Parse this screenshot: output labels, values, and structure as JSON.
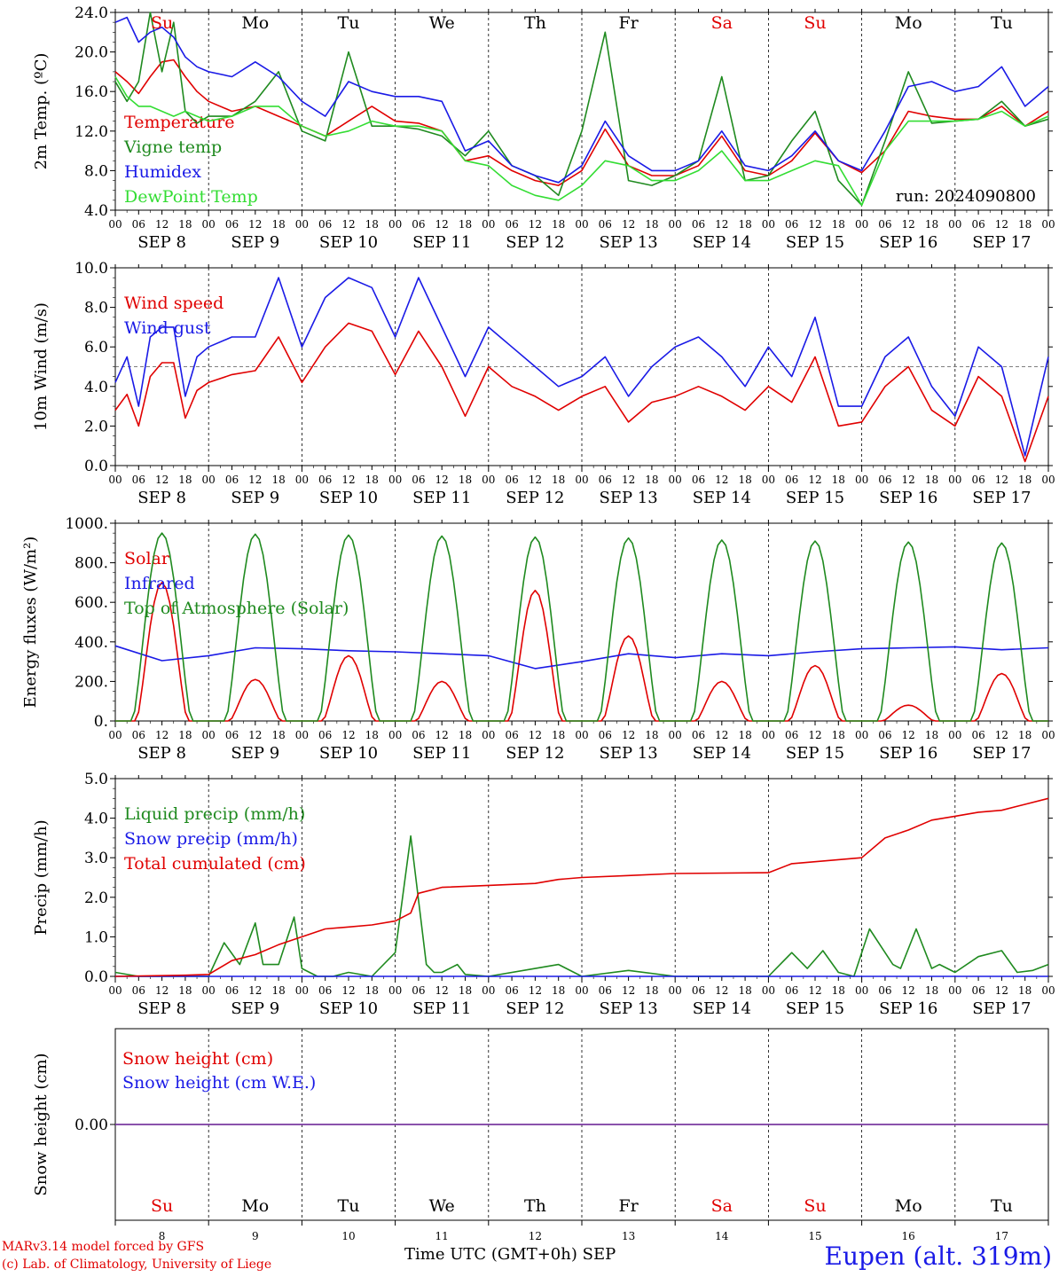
{
  "colors": {
    "red": "#e00000",
    "green": "#1f8a1f",
    "blue": "#1a1ae6",
    "lightgreen": "#33dd33",
    "purple": "#7a3aa0",
    "gray": "#666666"
  },
  "days": {
    "weekday": [
      "Su",
      "Mo",
      "Tu",
      "We",
      "Th",
      "Fr",
      "Sa",
      "Su",
      "Mo",
      "Tu"
    ],
    "weekend_flags": [
      true,
      false,
      false,
      false,
      false,
      false,
      true,
      true,
      false,
      false
    ],
    "dates": [
      "SEP  8",
      "SEP  9",
      "SEP 10",
      "SEP 11",
      "SEP 12",
      "SEP 13",
      "SEP 14",
      "SEP 15",
      "SEP 16",
      "SEP 17"
    ],
    "day_numbers": [
      "8",
      "9",
      "10",
      "11",
      "12",
      "13",
      "14",
      "15",
      "16",
      "17"
    ],
    "hour_ticks": [
      "00",
      "06",
      "12",
      "18"
    ],
    "final_tick": "00"
  },
  "run_label": "run: 2024090800",
  "footer": {
    "model": "MARv3.14 model forced by GFS",
    "lab": "(c) Lab. of Climatology, University of Liege",
    "xlabel": "Time UTC (GMT+0h)",
    "month": "SEP",
    "station": "Eupen (alt. 319m)"
  },
  "chart_data": [
    {
      "type": "line",
      "ylabel": "2m Temp. (ºC)",
      "ylim": [
        4.0,
        24.0
      ],
      "yticks": [
        "4.0",
        "8.0",
        "12.0",
        "16.0",
        "20.0",
        "24.0"
      ],
      "x_unit": "hours since SEP 8 00 UTC",
      "series": [
        {
          "name": "Temperature",
          "color": "red",
          "x": [
            0,
            3,
            6,
            9,
            12,
            15,
            18,
            21,
            24,
            30,
            36,
            42,
            48,
            54,
            60,
            66,
            72,
            78,
            84,
            90,
            96,
            102,
            108,
            114,
            120,
            126,
            132,
            138,
            144,
            150,
            156,
            162,
            168,
            174,
            180,
            186,
            192,
            198,
            204,
            210,
            216,
            222,
            228,
            234,
            240
          ],
          "y": [
            18,
            17,
            15.8,
            17.5,
            19,
            19.2,
            17.5,
            16,
            15,
            14,
            14.5,
            13.5,
            12.5,
            11.5,
            13,
            14.5,
            13,
            12.8,
            12,
            9,
            9.5,
            8,
            7,
            6.5,
            8,
            12.2,
            8.5,
            7.5,
            7.5,
            8.5,
            11.5,
            8,
            7.5,
            9,
            11.8,
            9,
            7.8,
            10,
            14,
            13.5,
            13.2,
            13.2,
            14.5,
            12.5,
            14
          ]
        },
        {
          "name": "Vigne temp",
          "color": "green",
          "x": [
            0,
            3,
            6,
            9,
            12,
            15,
            18,
            21,
            24,
            30,
            36,
            42,
            48,
            54,
            60,
            66,
            72,
            78,
            84,
            90,
            96,
            102,
            108,
            114,
            120,
            126,
            132,
            138,
            144,
            150,
            156,
            162,
            168,
            174,
            180,
            186,
            192,
            198,
            204,
            210,
            216,
            222,
            228,
            234,
            240
          ],
          "y": [
            17,
            15,
            17,
            24,
            18,
            23,
            14,
            12.8,
            13.5,
            13.5,
            15,
            18,
            12,
            11,
            20,
            12.5,
            12.5,
            12.2,
            11.5,
            9.5,
            12,
            8.5,
            7.5,
            5.5,
            12,
            22,
            7,
            6.5,
            7.5,
            9,
            17.5,
            7,
            7.5,
            11,
            14,
            7,
            4.5,
            11,
            18,
            12.8,
            13,
            13.2,
            15,
            12.5,
            13.2
          ]
        },
        {
          "name": "Humidex",
          "color": "blue",
          "x": [
            0,
            3,
            6,
            9,
            12,
            15,
            18,
            21,
            24,
            30,
            36,
            42,
            48,
            54,
            60,
            66,
            72,
            78,
            84,
            90,
            96,
            102,
            108,
            114,
            120,
            126,
            132,
            138,
            144,
            150,
            156,
            162,
            168,
            174,
            180,
            186,
            192,
            198,
            204,
            210,
            216,
            222,
            228,
            234,
            240
          ],
          "y": [
            23,
            23.5,
            21,
            22,
            22.5,
            21.5,
            19.5,
            18.5,
            18,
            17.5,
            19,
            17.5,
            15,
            13.5,
            17,
            16,
            15.5,
            15.5,
            15,
            10,
            11,
            8.5,
            7.5,
            6.8,
            8.5,
            13,
            9.5,
            8,
            8,
            9,
            12,
            8.5,
            8,
            9.5,
            12,
            9,
            8,
            12,
            16.5,
            17,
            16,
            16.5,
            18.5,
            14.5,
            16.5
          ]
        },
        {
          "name": "DewPoint Temp",
          "color": "lightgreen",
          "x": [
            0,
            3,
            6,
            9,
            12,
            15,
            18,
            21,
            24,
            30,
            36,
            42,
            48,
            54,
            60,
            66,
            72,
            78,
            84,
            90,
            96,
            102,
            108,
            114,
            120,
            126,
            132,
            138,
            144,
            150,
            156,
            162,
            168,
            174,
            180,
            186,
            192,
            198,
            204,
            210,
            216,
            222,
            228,
            234,
            240
          ],
          "y": [
            17.5,
            15.5,
            14.5,
            14.5,
            14,
            13.5,
            14,
            13.5,
            13,
            13.5,
            14.5,
            14.5,
            12.5,
            11.5,
            12,
            13,
            12.5,
            12.5,
            12,
            9,
            8.5,
            6.5,
            5.5,
            5,
            6.5,
            9,
            8.5,
            7,
            7,
            8,
            10,
            7,
            7,
            8,
            9,
            8.5,
            4.5,
            10,
            13,
            13,
            13,
            13.2,
            14,
            12.5,
            13.5
          ]
        }
      ]
    },
    {
      "type": "line",
      "ylabel": "10m Wind (m/s)",
      "ylim": [
        0.0,
        10.0
      ],
      "yticks": [
        "0.0",
        "2.0",
        "4.0",
        "6.0",
        "8.0",
        "10.0"
      ],
      "reference_line": 5.0,
      "series": [
        {
          "name": "Wind speed",
          "color": "red",
          "x": [
            0,
            3,
            6,
            9,
            12,
            15,
            18,
            21,
            24,
            30,
            36,
            42,
            48,
            54,
            60,
            66,
            72,
            78,
            84,
            90,
            96,
            102,
            108,
            114,
            120,
            126,
            132,
            138,
            144,
            150,
            156,
            162,
            168,
            174,
            180,
            186,
            192,
            198,
            204,
            210,
            216,
            222,
            228,
            234,
            240
          ],
          "y": [
            2.8,
            3.6,
            2,
            4.5,
            5.2,
            5.2,
            2.4,
            3.8,
            4.2,
            4.6,
            4.8,
            6.5,
            4.2,
            6,
            7.2,
            6.8,
            4.6,
            6.8,
            5,
            2.5,
            5,
            4,
            3.5,
            2.8,
            3.5,
            4,
            2.2,
            3.2,
            3.5,
            4,
            3.5,
            2.8,
            4,
            3.2,
            5.5,
            2,
            2.2,
            4,
            5,
            2.8,
            2,
            4.5,
            3.5,
            0.2,
            3.5
          ]
        },
        {
          "name": "Wind gust",
          "color": "blue",
          "x": [
            0,
            3,
            6,
            9,
            12,
            15,
            18,
            21,
            24,
            30,
            36,
            42,
            48,
            54,
            60,
            66,
            72,
            78,
            84,
            90,
            96,
            102,
            108,
            114,
            120,
            126,
            132,
            138,
            144,
            150,
            156,
            162,
            168,
            174,
            180,
            186,
            192,
            198,
            204,
            210,
            216,
            222,
            228,
            234,
            240
          ],
          "y": [
            4.2,
            5.5,
            3,
            6.5,
            7,
            7,
            3.5,
            5.5,
            6,
            6.5,
            6.5,
            9.5,
            6,
            8.5,
            9.5,
            9,
            6.5,
            9.5,
            7,
            4.5,
            7,
            6,
            5,
            4,
            4.5,
            5.5,
            3.5,
            5,
            6,
            6.5,
            5.5,
            4,
            6,
            4.5,
            7.5,
            3,
            3,
            5.5,
            6.5,
            4,
            2.5,
            6,
            5,
            0.5,
            5.5
          ]
        }
      ]
    },
    {
      "type": "line",
      "ylabel": "Energy fluxes (W/m²)",
      "ylim": [
        0,
        1000
      ],
      "yticks": [
        "0.",
        "200.",
        "400.",
        "600.",
        "800.",
        "1000."
      ],
      "series": [
        {
          "name": "Solar",
          "color": "red",
          "peaks": [
            [
              12,
              700
            ],
            [
              36,
              210
            ],
            [
              60,
              330
            ],
            [
              84,
              200
            ],
            [
              108,
              660
            ],
            [
              132,
              430
            ],
            [
              156,
              200
            ],
            [
              180,
              280
            ],
            [
              204,
              80
            ],
            [
              228,
              240
            ]
          ]
        },
        {
          "name": "Infrared",
          "color": "blue",
          "x": [
            0,
            12,
            24,
            36,
            48,
            60,
            72,
            84,
            96,
            108,
            120,
            132,
            144,
            156,
            168,
            180,
            192,
            204,
            216,
            228,
            240
          ],
          "y": [
            380,
            305,
            330,
            370,
            365,
            355,
            350,
            340,
            330,
            265,
            300,
            340,
            320,
            340,
            330,
            350,
            365,
            370,
            375,
            360,
            370
          ]
        },
        {
          "name": "Top of Atmosphere (Solar)",
          "color": "green",
          "peaks": [
            [
              12,
              950
            ],
            [
              36,
              945
            ],
            [
              60,
              940
            ],
            [
              84,
              935
            ],
            [
              108,
              930
            ],
            [
              132,
              925
            ],
            [
              156,
              915
            ],
            [
              180,
              910
            ],
            [
              204,
              905
            ],
            [
              228,
              900
            ]
          ]
        }
      ]
    },
    {
      "type": "line",
      "ylabel": "Precip (mm/h)",
      "ylim": [
        0.0,
        5.0
      ],
      "yticks": [
        "0.0",
        "1.0",
        "2.0",
        "3.0",
        "4.0",
        "5.0"
      ],
      "series": [
        {
          "name": "Liquid precip (mm/h)",
          "color": "green",
          "x": [
            0,
            6,
            12,
            18,
            24,
            28,
            32,
            36,
            38,
            42,
            46,
            48,
            52,
            56,
            60,
            66,
            72,
            76,
            80,
            82,
            84,
            88,
            90,
            96,
            108,
            114,
            120,
            132,
            144,
            168,
            174,
            178,
            182,
            186,
            190,
            194,
            198,
            200,
            202,
            206,
            210,
            212,
            216,
            222,
            228,
            232,
            236,
            240
          ],
          "y": [
            0.1,
            0,
            0,
            0,
            0,
            0.85,
            0.3,
            1.35,
            0.3,
            0.3,
            1.5,
            0.2,
            0,
            0,
            0.1,
            0,
            0.6,
            3.55,
            0.3,
            0.1,
            0.1,
            0.3,
            0.05,
            0,
            0.2,
            0.3,
            0,
            0.15,
            0,
            0,
            0.6,
            0.2,
            0.65,
            0.1,
            0,
            1.2,
            0.6,
            0.3,
            0.2,
            1.2,
            0.2,
            0.3,
            0.1,
            0.5,
            0.65,
            0.1,
            0.15,
            0.3
          ]
        },
        {
          "name": "Snow precip (mm/h)",
          "color": "blue",
          "x": [
            0,
            240
          ],
          "y": [
            0,
            0
          ]
        },
        {
          "name": "Total cumulated (cm)",
          "color": "red",
          "x": [
            0,
            18,
            24,
            30,
            36,
            42,
            48,
            54,
            60,
            66,
            72,
            76,
            78,
            84,
            96,
            108,
            114,
            120,
            132,
            144,
            168,
            174,
            180,
            186,
            192,
            198,
            204,
            210,
            216,
            222,
            228,
            234,
            240
          ],
          "y": [
            0,
            0.03,
            0.05,
            0.4,
            0.55,
            0.8,
            1.0,
            1.2,
            1.25,
            1.3,
            1.4,
            1.6,
            2.1,
            2.25,
            2.3,
            2.35,
            2.45,
            2.5,
            2.55,
            2.6,
            2.62,
            2.85,
            2.9,
            2.95,
            3.0,
            3.5,
            3.7,
            3.95,
            4.05,
            4.15,
            4.2,
            4.35,
            4.5
          ]
        }
      ]
    },
    {
      "type": "line",
      "ylabel": "Snow height (cm)",
      "ylim": [
        -1,
        1
      ],
      "yticks": [
        "0.00"
      ],
      "series": [
        {
          "name": "Snow height (cm)",
          "color": "red",
          "x": [
            0,
            240
          ],
          "y": [
            0,
            0
          ]
        },
        {
          "name": "Snow height (cm W.E.)",
          "color": "blue",
          "x": [
            0,
            240
          ],
          "y": [
            0,
            0
          ]
        }
      ]
    }
  ]
}
